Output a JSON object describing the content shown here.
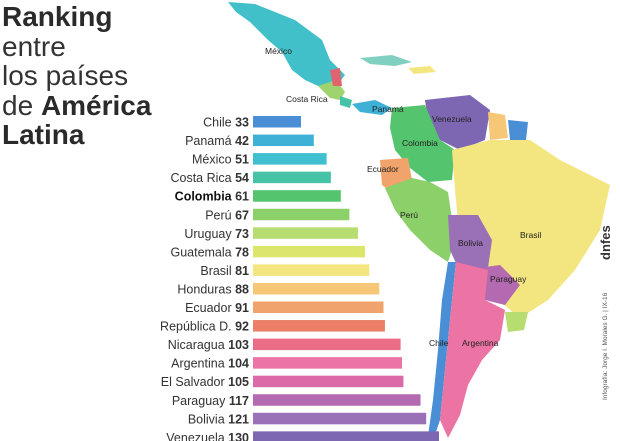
{
  "title": {
    "line1": "Ranking",
    "line2": "entre",
    "line3": "los países",
    "line4_prefix": "de ",
    "line4_bold": "América",
    "line5": "Latina"
  },
  "credit": "Infografía: Jorge I. Morales G. | IX-16",
  "logo": "dnfes",
  "colors": {
    "highlight_label": "#111111"
  },
  "map_labels": {
    "mexico": "México",
    "costa_rica": "Costa Rica",
    "panama": "Panamá",
    "venezuela": "Venezuela",
    "colombia": "Colombia",
    "ecuador": "Ecuador",
    "peru": "Perú",
    "brasil": "Brasil",
    "bolivia": "Bolivia",
    "paraguay": "Paraguay",
    "chile": "Chile",
    "argentina": "Argentina"
  },
  "chart_data": {
    "type": "bar",
    "orientation": "horizontal",
    "categories": [
      "Chile",
      "Panamá",
      "México",
      "Costa Rica",
      "Colombia",
      "Perú",
      "Uruguay",
      "Guatemala",
      "Brasil",
      "Honduras",
      "Ecuador",
      "República D.",
      "Nicaragua",
      "Argentina",
      "El Salvador",
      "Paraguay",
      "Bolivia",
      "Venezuela"
    ],
    "values": [
      33,
      42,
      51,
      54,
      61,
      67,
      73,
      78,
      81,
      88,
      91,
      92,
      103,
      104,
      105,
      117,
      121,
      130
    ],
    "highlight": "Colombia",
    "bar_colors": [
      "#4a8fd6",
      "#3fb0d6",
      "#3fbfcf",
      "#46c3a6",
      "#55c46e",
      "#8cd06a",
      "#b7dc6f",
      "#dbe66d",
      "#f3e680",
      "#f6c777",
      "#f0a36a",
      "#ec7f66",
      "#ea6c86",
      "#eb74a4",
      "#dd6aa8",
      "#b46ab0",
      "#9a70b6",
      "#7d67b2"
    ],
    "xlim": [
      0,
      130
    ]
  }
}
